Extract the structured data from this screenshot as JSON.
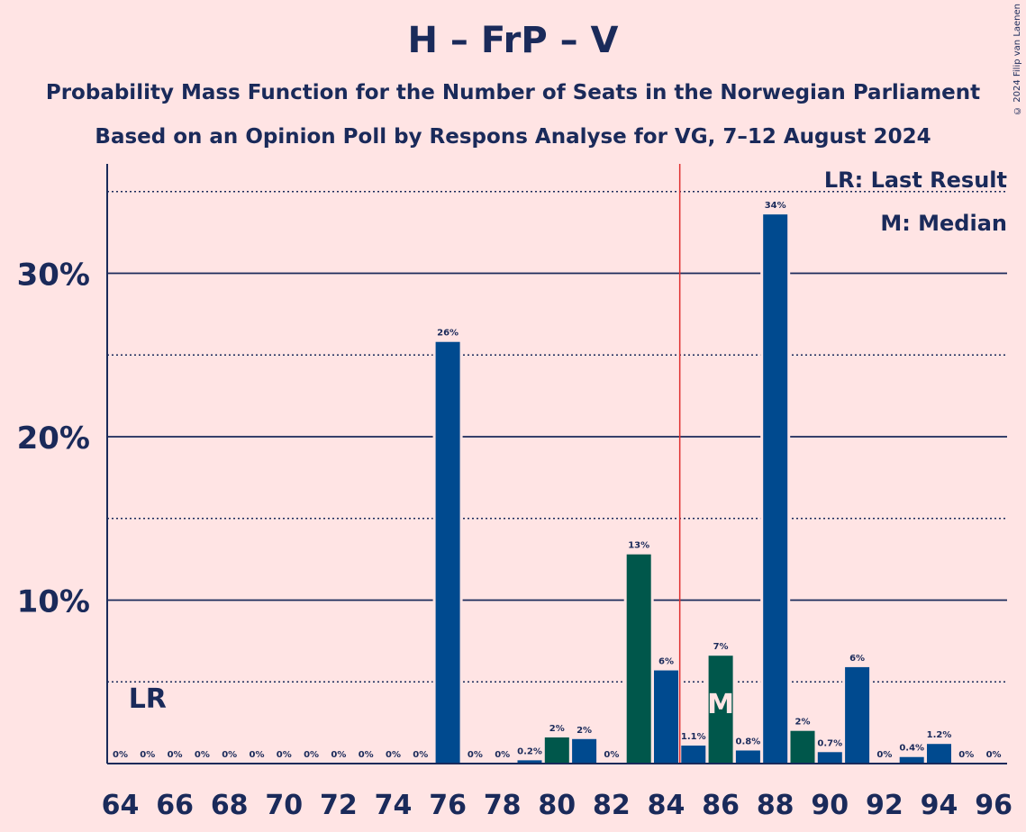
{
  "title": "H – FrP – V",
  "subtitle1": "Probability Mass Function for the Number of Seats in the Norwegian Parliament",
  "subtitle2": "Based on an Opinion Poll by Respons Analyse for VG, 7–12 August 2024",
  "copyright": "© 2024 Filip van Laenen",
  "legend": {
    "lr": "LR: Last Result",
    "m": "M: Median"
  },
  "colors": {
    "background": "#ffe4e4",
    "bar_blue": "#004a8f",
    "bar_green": "#00574b",
    "text": "#1a2a5a",
    "majority_line": "#e03030"
  },
  "chart_data": {
    "type": "bar",
    "xlabel": "",
    "ylabel": "",
    "ylim": [
      0,
      36.5
    ],
    "y_ticks": [
      {
        "v": 10,
        "label": "10%"
      },
      {
        "v": 20,
        "label": "20%"
      },
      {
        "v": 30,
        "label": "30%"
      }
    ],
    "x_tick_labels": [
      "64",
      "66",
      "68",
      "70",
      "72",
      "74",
      "76",
      "78",
      "80",
      "82",
      "84",
      "86",
      "88",
      "90",
      "92",
      "94",
      "96"
    ],
    "majority_after_seat": 84,
    "last_result_seat": 65,
    "last_result_label": "LR",
    "median_seat": 86,
    "median_label": "M",
    "bars": [
      {
        "seat": 64,
        "value": 0,
        "label": "0%",
        "color": "blue"
      },
      {
        "seat": 65,
        "value": 0,
        "label": "0%",
        "color": "blue"
      },
      {
        "seat": 66,
        "value": 0,
        "label": "0%",
        "color": "blue"
      },
      {
        "seat": 67,
        "value": 0,
        "label": "0%",
        "color": "blue"
      },
      {
        "seat": 68,
        "value": 0,
        "label": "0%",
        "color": "blue"
      },
      {
        "seat": 69,
        "value": 0,
        "label": "0%",
        "color": "blue"
      },
      {
        "seat": 70,
        "value": 0,
        "label": "0%",
        "color": "blue"
      },
      {
        "seat": 71,
        "value": 0,
        "label": "0%",
        "color": "blue"
      },
      {
        "seat": 72,
        "value": 0,
        "label": "0%",
        "color": "blue"
      },
      {
        "seat": 73,
        "value": 0,
        "label": "0%",
        "color": "blue"
      },
      {
        "seat": 74,
        "value": 0,
        "label": "0%",
        "color": "blue"
      },
      {
        "seat": 75,
        "value": 0,
        "label": "0%",
        "color": "blue"
      },
      {
        "seat": 76,
        "value": 25.8,
        "label": "26%",
        "color": "blue"
      },
      {
        "seat": 77,
        "value": 0,
        "label": "0%",
        "color": "blue"
      },
      {
        "seat": 78,
        "value": 0,
        "label": "0%",
        "color": "blue"
      },
      {
        "seat": 79,
        "value": 0.2,
        "label": "0.2%",
        "color": "blue"
      },
      {
        "seat": 80,
        "value": 1.6,
        "label": "2%",
        "color": "green"
      },
      {
        "seat": 81,
        "value": 1.5,
        "label": "2%",
        "color": "blue"
      },
      {
        "seat": 82,
        "value": 0,
        "label": "0%",
        "color": "blue"
      },
      {
        "seat": 83,
        "value": 12.8,
        "label": "13%",
        "color": "green"
      },
      {
        "seat": 84,
        "value": 5.7,
        "label": "6%",
        "color": "blue"
      },
      {
        "seat": 85,
        "value": 1.1,
        "label": "1.1%",
        "color": "blue"
      },
      {
        "seat": 86,
        "value": 6.6,
        "label": "7%",
        "color": "green"
      },
      {
        "seat": 87,
        "value": 0.8,
        "label": "0.8%",
        "color": "blue"
      },
      {
        "seat": 88,
        "value": 33.6,
        "label": "34%",
        "color": "blue"
      },
      {
        "seat": 89,
        "value": 2.0,
        "label": "2%",
        "color": "green"
      },
      {
        "seat": 90,
        "value": 0.7,
        "label": "0.7%",
        "color": "blue"
      },
      {
        "seat": 91,
        "value": 5.9,
        "label": "6%",
        "color": "blue"
      },
      {
        "seat": 92,
        "value": 0,
        "label": "0%",
        "color": "blue"
      },
      {
        "seat": 93,
        "value": 0.4,
        "label": "0.4%",
        "color": "blue"
      },
      {
        "seat": 94,
        "value": 1.2,
        "label": "1.2%",
        "color": "blue"
      },
      {
        "seat": 95,
        "value": 0,
        "label": "0%",
        "color": "blue"
      },
      {
        "seat": 96,
        "value": 0,
        "label": "0%",
        "color": "blue"
      }
    ]
  }
}
